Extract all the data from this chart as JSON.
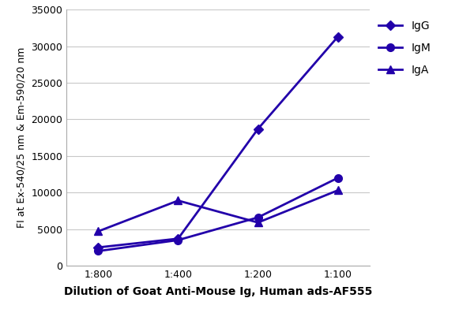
{
  "x_labels": [
    "1:800",
    "1:400",
    "1:200",
    "1:100"
  ],
  "x_values": [
    0,
    1,
    2,
    3
  ],
  "series": {
    "IgG": {
      "values": [
        2500,
        3700,
        18700,
        31300
      ],
      "marker": "D",
      "markersize": 6
    },
    "IgM": {
      "values": [
        2000,
        3500,
        6600,
        12000
      ],
      "marker": "o",
      "markersize": 7
    },
    "IgA": {
      "values": [
        4700,
        8900,
        5900,
        10300
      ],
      "marker": "^",
      "markersize": 7
    }
  },
  "ylabel": "FI at Ex-540/25 nm & Em-590/20 nm",
  "xlabel": "Dilution of Goat Anti-Mouse Ig, Human ads-AF555",
  "ylim": [
    0,
    35000
  ],
  "yticks": [
    0,
    5000,
    10000,
    15000,
    20000,
    25000,
    30000,
    35000
  ],
  "background_color": "#ffffff",
  "grid_color": "#c8c8c8",
  "legend_order": [
    "IgG",
    "IgM",
    "IgA"
  ],
  "line_color": "#2200aa",
  "linewidth": 2.0,
  "tick_fontsize": 9,
  "ylabel_fontsize": 9,
  "xlabel_fontsize": 10
}
